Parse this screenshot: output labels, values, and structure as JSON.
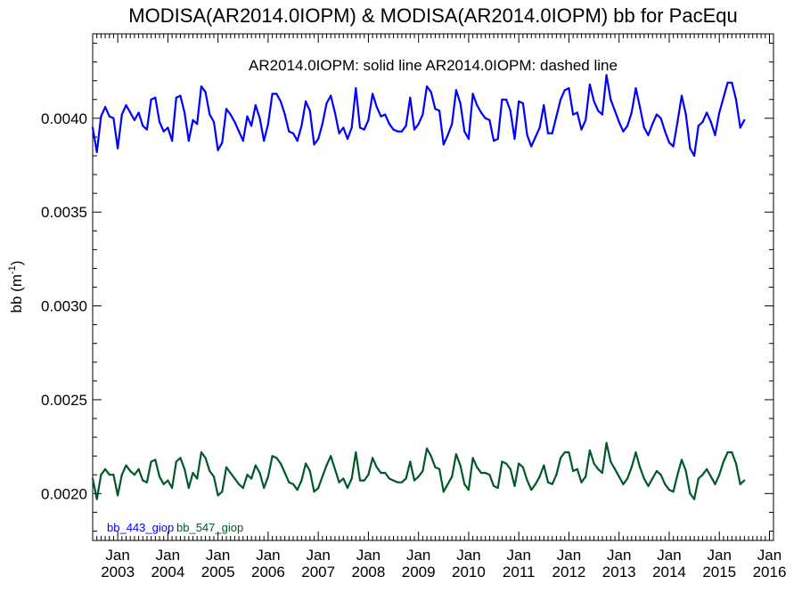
{
  "chart_data": {
    "type": "line",
    "title": "MODISA(AR2014.0IOPM) & MODISA(AR2014.0IOPM)  bb for PacEqu",
    "subtitle": "AR2014.0IOPM: solid line   AR2014.0IOPM: dashed line",
    "ylabel": "bb (m",
    "ylabel_sup": "-1",
    "ylabel_close": ")",
    "xlabel": "",
    "xlim": [
      2002.5,
      2016.08
    ],
    "ylim": [
      0.00175,
      0.00445
    ],
    "yticks": [
      0.002,
      0.0025,
      0.003,
      0.0035,
      0.004
    ],
    "ytick_labels": [
      "0.0020",
      "0.0025",
      "0.0030",
      "0.0035",
      "0.0040"
    ],
    "xticks": [
      {
        "x": 2003.0,
        "month": "Jan",
        "year": "2003"
      },
      {
        "x": 2004.0,
        "month": "Jan",
        "year": "2004"
      },
      {
        "x": 2005.0,
        "month": "Jan",
        "year": "2005"
      },
      {
        "x": 2006.0,
        "month": "Jan",
        "year": "2006"
      },
      {
        "x": 2007.0,
        "month": "Jan",
        "year": "2007"
      },
      {
        "x": 2008.0,
        "month": "Jan",
        "year": "2008"
      },
      {
        "x": 2009.0,
        "month": "Jan",
        "year": "2009"
      },
      {
        "x": 2010.0,
        "month": "Jan",
        "year": "2010"
      },
      {
        "x": 2011.0,
        "month": "Jan",
        "year": "2011"
      },
      {
        "x": 2012.0,
        "month": "Jan",
        "year": "2012"
      },
      {
        "x": 2013.0,
        "month": "Jan",
        "year": "2013"
      },
      {
        "x": 2014.0,
        "month": "Jan",
        "year": "2014"
      },
      {
        "x": 2015.0,
        "month": "Jan",
        "year": "2015"
      },
      {
        "x": 2016.0,
        "month": "Jan",
        "year": "2016"
      }
    ],
    "x_start": 2002.5,
    "x_step": 0.08333,
    "series": [
      {
        "name": "bb_443_giop",
        "color": "#0000ff",
        "style": "solid",
        "values": [
          0.00395,
          0.00382,
          0.00401,
          0.00406,
          0.00401,
          0.004,
          0.00384,
          0.00402,
          0.00407,
          0.00403,
          0.00399,
          0.00403,
          0.00396,
          0.00394,
          0.0041,
          0.00411,
          0.00398,
          0.00393,
          0.00395,
          0.00388,
          0.00411,
          0.00412,
          0.00403,
          0.00388,
          0.00399,
          0.00397,
          0.00417,
          0.00414,
          0.00402,
          0.00398,
          0.00383,
          0.00387,
          0.00405,
          0.00402,
          0.00398,
          0.00393,
          0.00388,
          0.00401,
          0.00396,
          0.00407,
          0.004,
          0.00388,
          0.00397,
          0.00413,
          0.00413,
          0.00409,
          0.00402,
          0.00393,
          0.00392,
          0.00388,
          0.00396,
          0.00409,
          0.00404,
          0.00386,
          0.00389,
          0.00397,
          0.00408,
          0.00412,
          0.00403,
          0.00392,
          0.00395,
          0.00389,
          0.00395,
          0.00416,
          0.00395,
          0.00394,
          0.00399,
          0.00413,
          0.00406,
          0.00401,
          0.00402,
          0.00397,
          0.00394,
          0.00393,
          0.00393,
          0.00396,
          0.00411,
          0.00394,
          0.00397,
          0.00402,
          0.00417,
          0.00414,
          0.00405,
          0.00404,
          0.00386,
          0.00391,
          0.00397,
          0.00415,
          0.00408,
          0.00393,
          0.00389,
          0.00413,
          0.00407,
          0.00403,
          0.004,
          0.00399,
          0.00388,
          0.00389,
          0.0041,
          0.0041,
          0.00404,
          0.00389,
          0.00409,
          0.00408,
          0.00391,
          0.00385,
          0.0039,
          0.00395,
          0.00407,
          0.00392,
          0.00392,
          0.00401,
          0.0041,
          0.00415,
          0.00416,
          0.00402,
          0.00403,
          0.00394,
          0.00399,
          0.00418,
          0.00409,
          0.00404,
          0.00402,
          0.00423,
          0.0041,
          0.00404,
          0.00398,
          0.00393,
          0.00396,
          0.00403,
          0.00416,
          0.00406,
          0.00395,
          0.00391,
          0.00397,
          0.00402,
          0.004,
          0.00393,
          0.00387,
          0.00385,
          0.00398,
          0.00412,
          0.00402,
          0.00384,
          0.0038,
          0.00396,
          0.00398,
          0.00403,
          0.00398,
          0.00391,
          0.00403,
          0.00411,
          0.00419,
          0.00419,
          0.0041,
          0.00395,
          0.00399
        ]
      },
      {
        "name": "bb_547_giop",
        "color": "#005a28",
        "style": "solid",
        "values": [
          0.00208,
          0.00197,
          0.0021,
          0.00213,
          0.0021,
          0.0021,
          0.00199,
          0.0021,
          0.00215,
          0.00212,
          0.0021,
          0.00213,
          0.00207,
          0.00206,
          0.00217,
          0.00218,
          0.00209,
          0.00205,
          0.00207,
          0.00203,
          0.00217,
          0.00219,
          0.00213,
          0.00203,
          0.00211,
          0.00208,
          0.00222,
          0.00219,
          0.00212,
          0.00209,
          0.00199,
          0.00201,
          0.00214,
          0.00211,
          0.00208,
          0.00205,
          0.00203,
          0.0021,
          0.00208,
          0.00215,
          0.00211,
          0.00203,
          0.00209,
          0.0022,
          0.00219,
          0.00216,
          0.00211,
          0.00206,
          0.00205,
          0.00202,
          0.00207,
          0.00216,
          0.00212,
          0.00201,
          0.00203,
          0.00209,
          0.00215,
          0.0022,
          0.00213,
          0.00206,
          0.00208,
          0.00203,
          0.00208,
          0.00222,
          0.00207,
          0.00207,
          0.0021,
          0.00219,
          0.00214,
          0.00211,
          0.00211,
          0.00208,
          0.00207,
          0.00206,
          0.00206,
          0.00208,
          0.00217,
          0.00207,
          0.00209,
          0.00212,
          0.00224,
          0.0022,
          0.00214,
          0.00213,
          0.00201,
          0.00205,
          0.00209,
          0.00221,
          0.00215,
          0.00205,
          0.00202,
          0.00219,
          0.00214,
          0.00211,
          0.00211,
          0.0021,
          0.00204,
          0.00203,
          0.00217,
          0.00216,
          0.00213,
          0.00204,
          0.00216,
          0.00214,
          0.00207,
          0.00202,
          0.00205,
          0.00209,
          0.00215,
          0.00206,
          0.00205,
          0.0021,
          0.00219,
          0.00222,
          0.00222,
          0.00212,
          0.00213,
          0.00206,
          0.00209,
          0.00223,
          0.00216,
          0.00213,
          0.00211,
          0.00227,
          0.00217,
          0.00213,
          0.00209,
          0.00205,
          0.00208,
          0.00214,
          0.00222,
          0.00214,
          0.00208,
          0.00204,
          0.00208,
          0.00212,
          0.0021,
          0.00205,
          0.00202,
          0.00201,
          0.0021,
          0.00218,
          0.00212,
          0.002,
          0.00197,
          0.00208,
          0.0021,
          0.00213,
          0.00209,
          0.00205,
          0.0021,
          0.00217,
          0.00222,
          0.00222,
          0.00216,
          0.00205,
          0.00207
        ]
      }
    ],
    "legend": [
      {
        "label": "bb_443_giop",
        "color": "#0000ff"
      },
      {
        "label": "bb_547_giop",
        "color": "#005a28"
      }
    ],
    "legend_position": "bottom-left",
    "grid": false
  }
}
